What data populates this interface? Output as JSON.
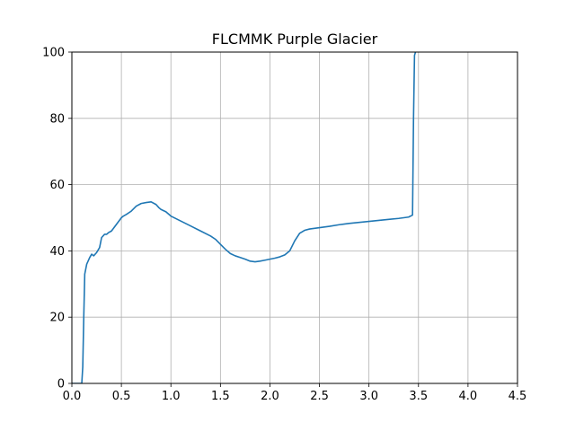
{
  "chart_data": {
    "type": "line",
    "title": "FLCMMK Purple Glacier",
    "xlabel": "",
    "ylabel": "",
    "xlim": [
      0,
      4.5
    ],
    "ylim": [
      0,
      100
    ],
    "grid": true,
    "x_ticks": [
      "0.0",
      "0.5",
      "1.0",
      "1.5",
      "2.0",
      "2.5",
      "3.0",
      "3.5",
      "4.0",
      "4.5"
    ],
    "y_ticks": [
      "0",
      "20",
      "40",
      "60",
      "80",
      "100"
    ],
    "line_color": "#1f77b4",
    "series": [
      {
        "x": [
          0.0,
          0.1,
          0.11,
          0.12,
          0.13,
          0.15,
          0.18,
          0.2,
          0.22,
          0.25,
          0.28,
          0.3,
          0.33,
          0.35,
          0.37,
          0.4,
          0.45,
          0.5,
          0.52,
          0.55,
          0.6,
          0.65,
          0.7,
          0.75,
          0.8,
          0.85,
          0.88,
          0.9,
          0.95,
          1.0,
          1.1,
          1.2,
          1.3,
          1.4,
          1.45,
          1.5,
          1.55,
          1.6,
          1.65,
          1.7,
          1.75,
          1.8,
          1.85,
          1.9,
          1.95,
          2.0,
          2.05,
          2.1,
          2.15,
          2.2,
          2.25,
          2.3,
          2.35,
          2.4,
          2.5,
          2.6,
          2.7,
          2.8,
          2.9,
          3.0,
          3.1,
          3.2,
          3.3,
          3.4,
          3.44,
          3.45,
          3.46,
          3.47
        ],
        "y": [
          0,
          0,
          5,
          20,
          33,
          36,
          38,
          39,
          38.5,
          39.5,
          41,
          44,
          45,
          45,
          45.5,
          46,
          48,
          50,
          50.5,
          51,
          52,
          53.5,
          54.3,
          54.6,
          54.8,
          54,
          53,
          52.5,
          51.8,
          50.5,
          49,
          47.5,
          46,
          44.5,
          43.5,
          42,
          40.5,
          39.2,
          38.5,
          38,
          37.5,
          36.9,
          36.7,
          36.9,
          37.2,
          37.5,
          37.8,
          38.2,
          38.8,
          40,
          43,
          45.3,
          46.2,
          46.6,
          47,
          47.4,
          47.9,
          48.3,
          48.6,
          48.9,
          49.2,
          49.5,
          49.8,
          50.2,
          50.8,
          80,
          99,
          100
        ]
      }
    ]
  }
}
